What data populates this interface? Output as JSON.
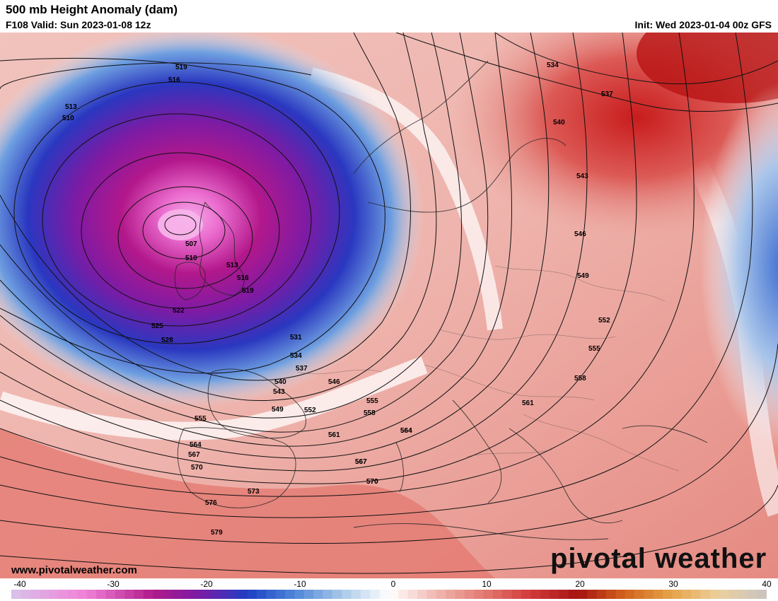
{
  "header": {
    "title": "500 mb Height Anomaly (dam)",
    "valid": "F108 Valid: Sun 2023-01-08 12z",
    "init": "Init: Wed 2023-01-04 00z GFS"
  },
  "footer": {
    "website": "www.pivotalweather.com",
    "brand": "pivotal weather"
  },
  "colorbar": {
    "ticks": [
      "-40",
      "-30",
      "-20",
      "-10",
      "0",
      "10",
      "20",
      "30",
      "40"
    ],
    "min": -40,
    "max": 40,
    "stops": [
      {
        "value": -40,
        "color": "#d8c3ea"
      },
      {
        "value": -32,
        "color": "#f07fd6"
      },
      {
        "value": -25,
        "color": "#b01a8a"
      },
      {
        "value": -20,
        "color": "#7a1aa6"
      },
      {
        "value": -15,
        "color": "#1d3fc4"
      },
      {
        "value": -10,
        "color": "#4f86d8"
      },
      {
        "value": -5,
        "color": "#a8c8ea"
      },
      {
        "value": 0,
        "color": "#ffffff"
      },
      {
        "value": 5,
        "color": "#f0b7b0"
      },
      {
        "value": 10,
        "color": "#e37a72"
      },
      {
        "value": 15,
        "color": "#d23a3a"
      },
      {
        "value": 20,
        "color": "#a51212"
      },
      {
        "value": 25,
        "color": "#d2641c"
      },
      {
        "value": 30,
        "color": "#e6a44a"
      },
      {
        "value": 35,
        "color": "#ebd09e"
      },
      {
        "value": 40,
        "color": "#c9c4c2"
      }
    ]
  },
  "contour_labels": [
    "519",
    "516",
    "513",
    "510",
    "507",
    "510",
    "513",
    "516",
    "519",
    "522",
    "525",
    "528",
    "531",
    "534",
    "537",
    "540",
    "543",
    "546",
    "549",
    "552",
    "555",
    "558",
    "561",
    "564",
    "567",
    "570",
    "573",
    "576",
    "579",
    "534",
    "537",
    "540",
    "543",
    "546",
    "549",
    "552",
    "555",
    "558",
    "561",
    "564",
    "567",
    "570",
    "555",
    "564",
    "567",
    "570"
  ]
}
